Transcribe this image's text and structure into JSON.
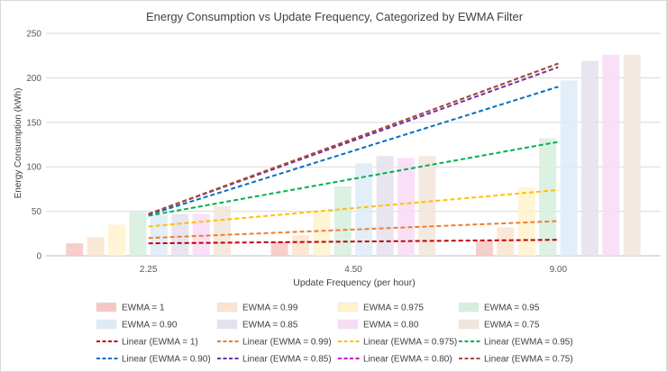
{
  "chart_data": {
    "type": "bar",
    "title": "Energy Consumption vs Update Frequency, Categorized by EWMA Filter",
    "xlabel": "Update Frequency (per hour)",
    "ylabel": "Energy Consumption (kWh)",
    "categories": [
      "2.25",
      "4.50",
      "9.00"
    ],
    "ylim": [
      0,
      250
    ],
    "yticks": [
      "0",
      "50",
      "100",
      "150",
      "200",
      "250"
    ],
    "grid": true,
    "legend_position": "bottom",
    "series": [
      {
        "name": "EWMA = 1",
        "color": "#f4c7c3",
        "values": [
          14,
          16,
          17
        ]
      },
      {
        "name": "EWMA = 0.99",
        "color": "#fbe3d0",
        "values": [
          21,
          23,
          32
        ]
      },
      {
        "name": "EWMA = 0.975",
        "color": "#fff2cc",
        "values": [
          35,
          50,
          77
        ]
      },
      {
        "name": "EWMA = 0.95",
        "color": "#d6eedd",
        "values": [
          49,
          78,
          132
        ]
      },
      {
        "name": "EWMA = 0.90",
        "color": "#ddebf7",
        "values": [
          46,
          104,
          197
        ]
      },
      {
        "name": "EWMA = 0.85",
        "color": "#e4e0ee",
        "values": [
          47,
          112,
          219
        ]
      },
      {
        "name": "EWMA = 0.80",
        "color": "#f9dbf6",
        "values": [
          47,
          110,
          226
        ]
      },
      {
        "name": "EWMA = 0.75",
        "color": "#f2e5dc",
        "values": [
          56,
          112,
          226
        ]
      }
    ],
    "trendlines": [
      {
        "name": "Linear (EWMA = 1)",
        "color": "#c00000",
        "start": 14,
        "end": 18
      },
      {
        "name": "Linear (EWMA = 0.99)",
        "color": "#ed7d31",
        "start": 20,
        "end": 39
      },
      {
        "name": "Linear (EWMA = 0.975)",
        "color": "#ffc000",
        "start": 33,
        "end": 74
      },
      {
        "name": "Linear (EWMA = 0.95)",
        "color": "#00b050",
        "start": 45,
        "end": 128
      },
      {
        "name": "Linear (EWMA = 0.90)",
        "color": "#0070c0",
        "start": 46,
        "end": 190
      },
      {
        "name": "Linear (EWMA = 0.85)",
        "color": "#7030a0",
        "start": 47,
        "end": 212
      },
      {
        "name": "Linear (EWMA = 0.80)",
        "color": "#cc00cc",
        "start": 47,
        "end": 216
      },
      {
        "name": "Linear (EWMA = 0.75)",
        "color": "#a0522d",
        "start": 47,
        "end": 216
      }
    ]
  }
}
